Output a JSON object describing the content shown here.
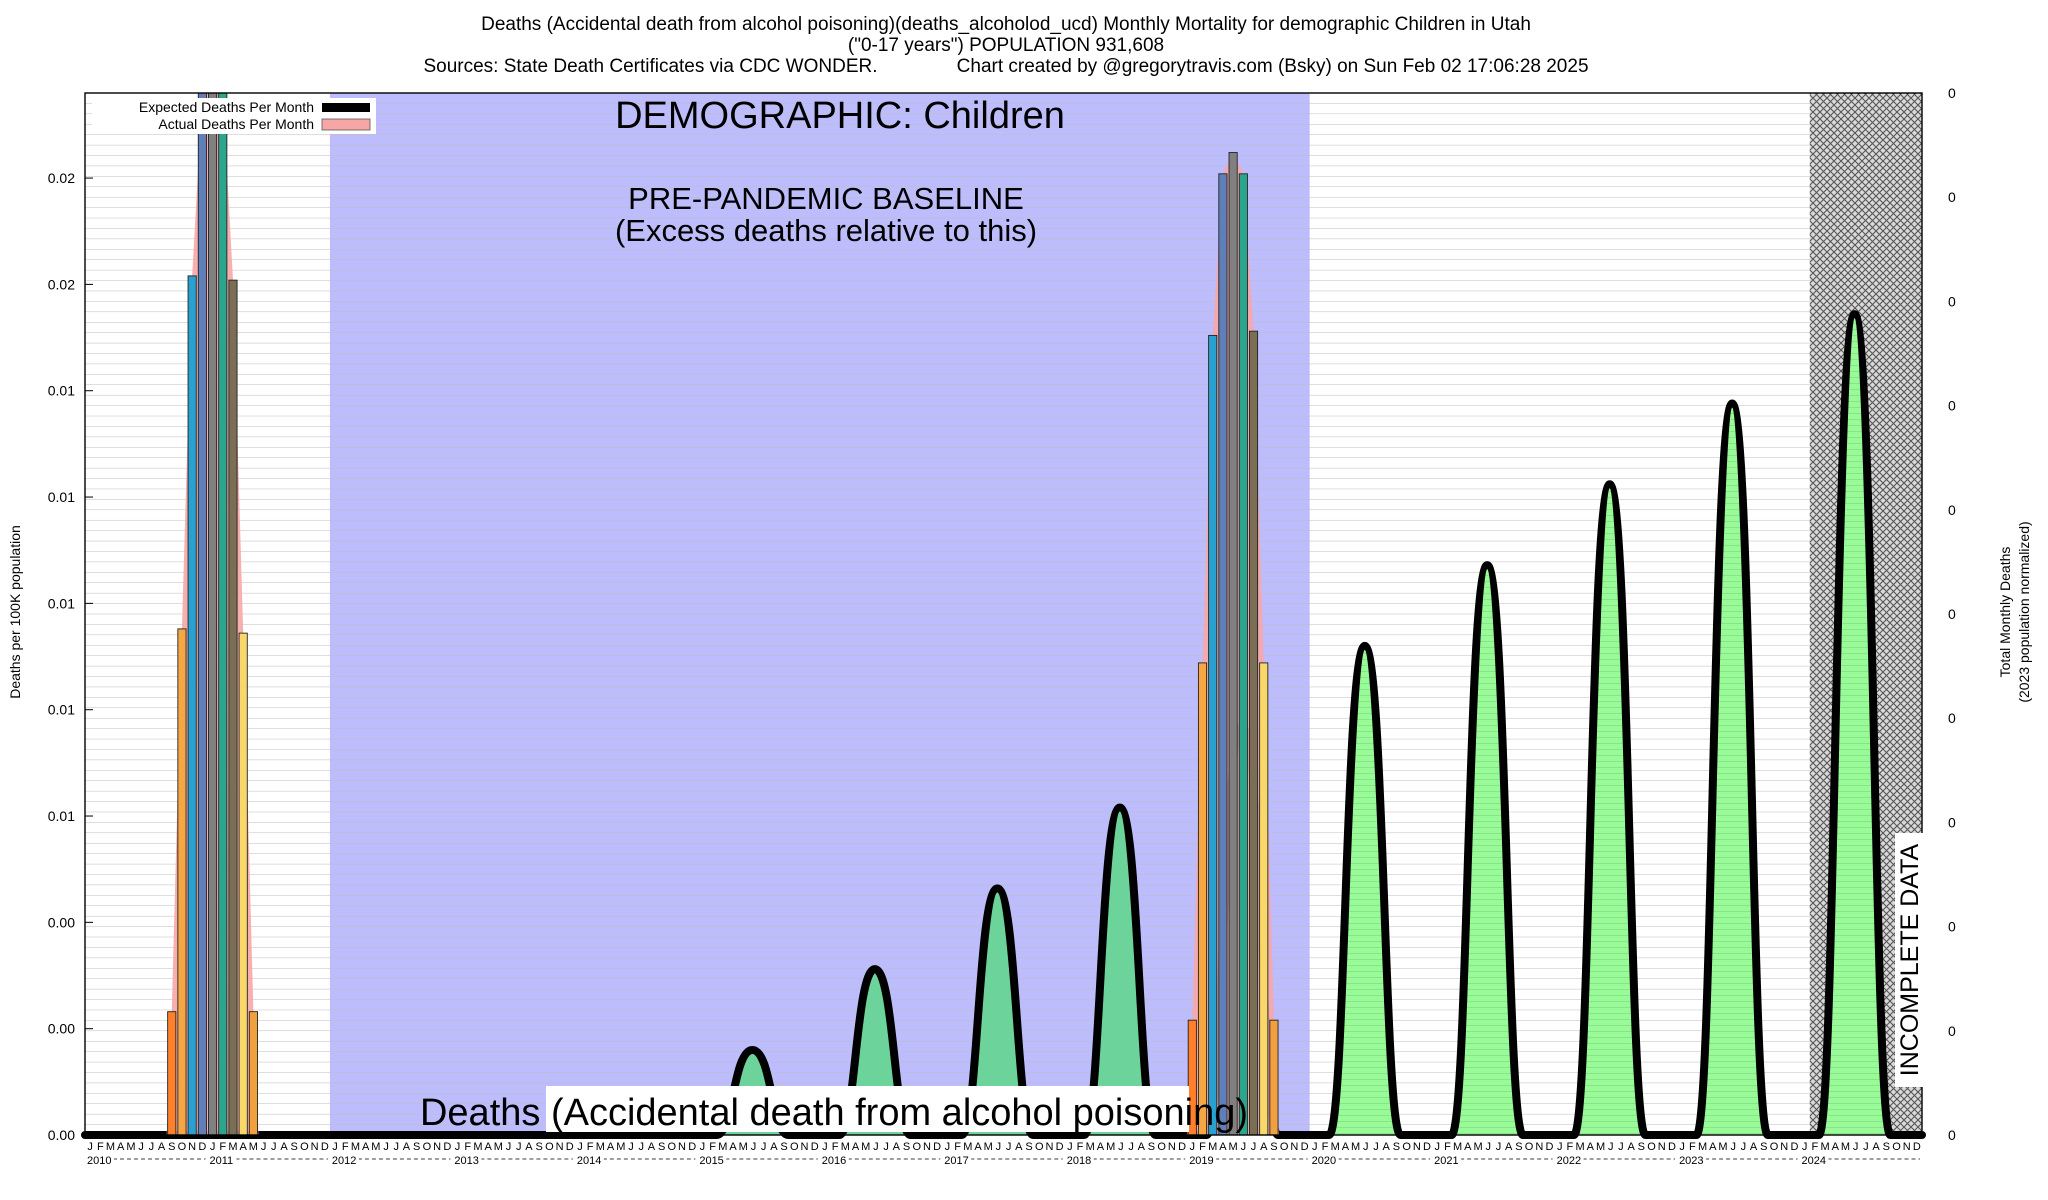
{
  "header": {
    "line1": "Deaths (Accidental death from alcohol poisoning)(deaths_alcoholod_ucd) Monthly Mortality for demographic Children in Utah",
    "line2": "(\"0-17 years\") POPULATION 931,608",
    "line3": "Sources: State Death Certificates via CDC WONDER.               Chart created by @gregorytravis.com (Bsky) on Sun Feb 02 17:06:28 2025"
  },
  "chart_data": {
    "type": "bar",
    "xlabel": "",
    "ylabel": "Deaths per 100K population",
    "y2label_line1": "Total Monthly Deaths",
    "y2label_line2": "(2023 population normalized)",
    "ylim": [
      0,
      0.0245
    ],
    "y_ticks": [
      0,
      0.0025,
      0.005,
      0.0075,
      0.01,
      0.0125,
      0.015,
      0.0175,
      0.02,
      0.0225
    ],
    "y_tick_labels": [
      "0.00",
      "0.00",
      "0.00",
      "0.01",
      "0.01",
      "0.01",
      "0.01",
      "0.01",
      "0.02",
      "0.02"
    ],
    "y2_tick_labels": [
      "0",
      "0",
      "0",
      "0",
      "0",
      "0",
      "0",
      "0",
      "0",
      "0",
      "0"
    ],
    "x_start_year": 2010,
    "years": [
      "2010",
      "2011",
      "2012",
      "2013",
      "2014",
      "2015",
      "2016",
      "2017",
      "2018",
      "2019",
      "2020",
      "2021",
      "2022",
      "2023",
      "2024"
    ],
    "month_letters": [
      "J",
      "F",
      "M",
      "A",
      "M",
      "J",
      "J",
      "A",
      "S",
      "O",
      "N",
      "D"
    ],
    "legend": {
      "expected": "Expected Deaths Per Month",
      "actual": "Actual Deaths Per Month",
      "placement": "top-left"
    },
    "annotations": {
      "demographic": "DEMOGRAPHIC: Children",
      "baseline_line1": "PRE-PANDEMIC BASELINE",
      "baseline_line2": "(Excess deaths relative to this)",
      "bottom_title": "Deaths (Accidental death from alcohol poisoning)",
      "incomplete": "INCOMPLETE DATA"
    },
    "baseline_period": [
      "2012-01",
      "2019-12"
    ],
    "incomplete_period": [
      "2024-02",
      "2024-12"
    ],
    "actual_clusters": [
      {
        "start": "2010-09",
        "values": [
          0.0029,
          0.0119,
          0.0202,
          0.0245,
          0.0245,
          0.0245,
          0.0201,
          0.0118,
          0.0029
        ]
      },
      {
        "start": "2019-01",
        "values": [
          0.0027,
          0.0111,
          0.0188,
          0.0226,
          0.0231,
          0.0226,
          0.0189,
          0.0111,
          0.0027
        ]
      }
    ],
    "expected_peaks": [
      {
        "year": "2015",
        "value": 0.002
      },
      {
        "year": "2016",
        "value": 0.0039
      },
      {
        "year": "2017",
        "value": 0.0058
      },
      {
        "year": "2018",
        "value": 0.0077
      },
      {
        "year": "2019",
        "value": 0.0096
      },
      {
        "year": "2020",
        "value": 0.0115
      },
      {
        "year": "2021",
        "value": 0.0134
      },
      {
        "year": "2022",
        "value": 0.0153
      },
      {
        "year": "2023",
        "value": 0.0172
      },
      {
        "year": "2024",
        "value": 0.0193
      }
    ],
    "grid": true,
    "colors": {
      "baseline_fill": "#bdbdfd",
      "excess_fill": "#98fb98",
      "baseline_peak_fill": "#6cd39b",
      "expected_line": "#000000",
      "actual_band": "#f7a6a6",
      "bar_palette": [
        "#ff7f2a",
        "#f4a742",
        "#28a0d0",
        "#5f7fb8",
        "#808080",
        "#2ca58d",
        "#7a6f55",
        "#f9d86b",
        "#f0a040"
      ]
    }
  }
}
